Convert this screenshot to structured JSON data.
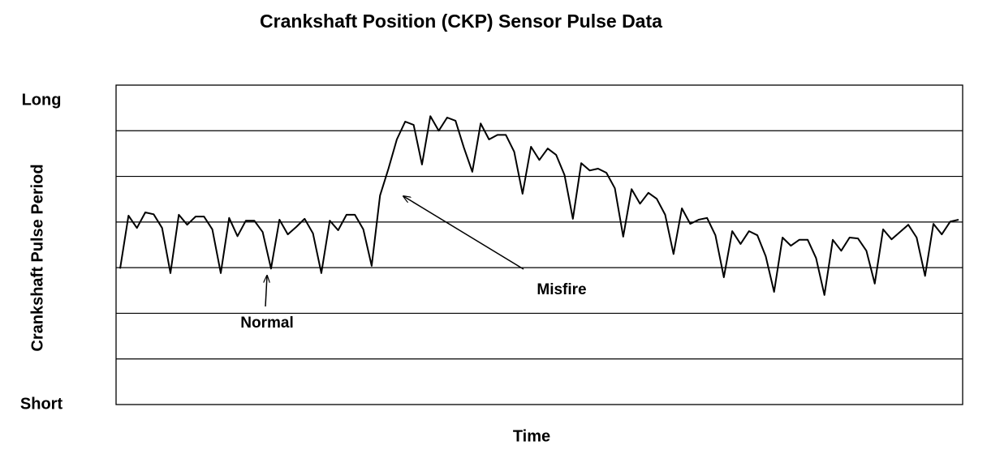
{
  "chart_data": {
    "type": "line",
    "title": "Crankshaft Position (CKP) Sensor Pulse Data",
    "x_label": "Time",
    "y_label": "Crankshaft Pulse Period",
    "ylim": [
      0,
      7
    ],
    "yticks": [
      {
        "value": 0,
        "label": "Short"
      },
      {
        "value": 7,
        "label": "Long"
      }
    ],
    "grid": true,
    "grid_lines": [
      1,
      2,
      3,
      4,
      5,
      6
    ],
    "color": "#000000",
    "annotations": [
      "Normal",
      "Misfire"
    ],
    "values": [
      2.98,
      4.14,
      3.87,
      4.21,
      4.17,
      3.87,
      2.88,
      4.16,
      3.94,
      4.12,
      4.12,
      3.84,
      2.88,
      4.09,
      3.69,
      4.03,
      4.03,
      3.78,
      2.98,
      4.05,
      3.73,
      3.89,
      4.07,
      3.75,
      2.88,
      4.03,
      3.82,
      4.16,
      4.16,
      3.84,
      3.04,
      4.58,
      5.17,
      5.81,
      6.2,
      6.13,
      5.26,
      6.32,
      6.0,
      6.29,
      6.22,
      5.63,
      5.1,
      6.16,
      5.81,
      5.91,
      5.91,
      5.54,
      4.62,
      5.65,
      5.36,
      5.61,
      5.47,
      5.03,
      4.07,
      5.29,
      5.13,
      5.17,
      5.08,
      4.74,
      3.68,
      4.72,
      4.4,
      4.64,
      4.51,
      4.16,
      3.3,
      4.3,
      3.96,
      4.05,
      4.09,
      3.71,
      2.79,
      3.8,
      3.52,
      3.8,
      3.71,
      3.25,
      2.47,
      3.66,
      3.48,
      3.61,
      3.61,
      3.21,
      2.4,
      3.61,
      3.37,
      3.66,
      3.64,
      3.37,
      2.65,
      3.84,
      3.62,
      3.78,
      3.94,
      3.66,
      2.82,
      3.96,
      3.73,
      4.01,
      4.05
    ]
  }
}
